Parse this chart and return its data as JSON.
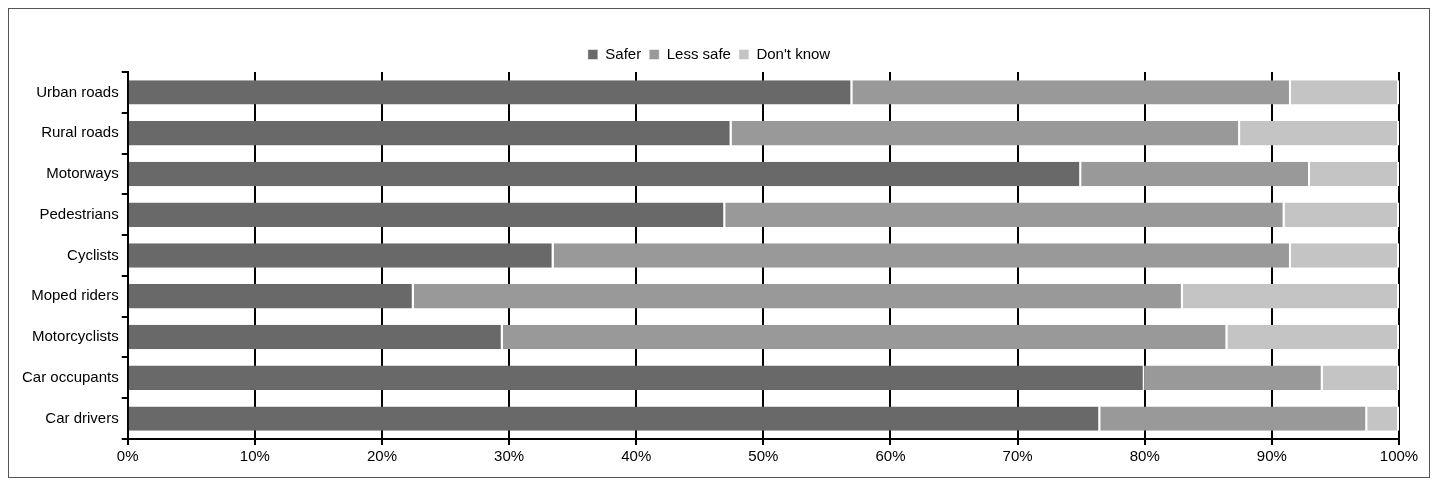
{
  "chart_data": {
    "type": "bar",
    "orientation": "horizontal",
    "stacked": true,
    "categories": [
      "Urban roads",
      "Rural roads",
      "Motorways",
      "Pedestrians",
      "Cyclists",
      "Moped riders",
      "Motorcyclists",
      "Car occupants",
      "Car drivers"
    ],
    "series": [
      {
        "name": "Safer",
        "color": "#696969",
        "values": [
          57,
          47.5,
          75,
          47,
          33.5,
          22.5,
          29.5,
          80,
          76.5
        ]
      },
      {
        "name": "Less safe",
        "color": "#999999",
        "values": [
          34.5,
          40,
          18,
          44,
          58,
          60.5,
          57,
          14,
          21
        ]
      },
      {
        "name": "Don't know",
        "color": "#c4c4c4",
        "values": [
          8.5,
          12.5,
          7,
          9,
          8.5,
          17,
          13.5,
          6,
          2.5
        ]
      }
    ],
    "xlim": [
      0,
      100
    ],
    "xticks": [
      {
        "value": 0,
        "label": "0%"
      },
      {
        "value": 10,
        "label": "10%"
      },
      {
        "value": 20,
        "label": "20%"
      },
      {
        "value": 30,
        "label": "30%"
      },
      {
        "value": 40,
        "label": "40%"
      },
      {
        "value": 50,
        "label": "50%"
      },
      {
        "value": 60,
        "label": "60%"
      },
      {
        "value": 70,
        "label": "70%"
      },
      {
        "value": 80,
        "label": "80%"
      },
      {
        "value": 90,
        "label": "90%"
      },
      {
        "value": 100,
        "label": "100%"
      }
    ],
    "grid": "x",
    "legend": "top"
  }
}
